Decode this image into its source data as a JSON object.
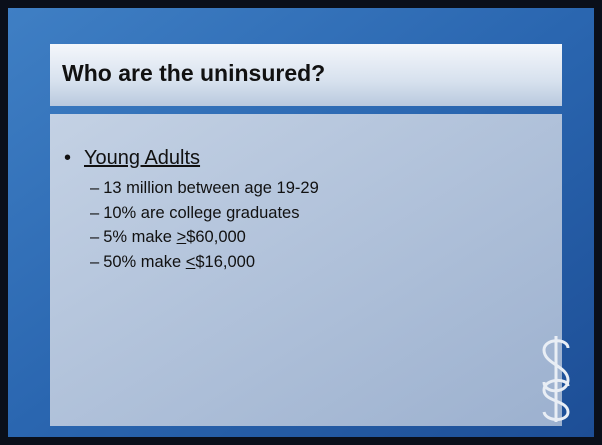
{
  "header": {
    "title": "Who are the uninsured?"
  },
  "bullets": [
    {
      "text": "Young Adults",
      "items": [
        {
          "text": "13 million between age 19-29"
        },
        {
          "text": "10% are college graduates"
        },
        {
          "text": "5% make ",
          "underlined": ">",
          "rest": "$60,000"
        },
        {
          "text": "50% make ",
          "underlined": "<",
          "rest": "$16,000"
        }
      ]
    }
  ]
}
